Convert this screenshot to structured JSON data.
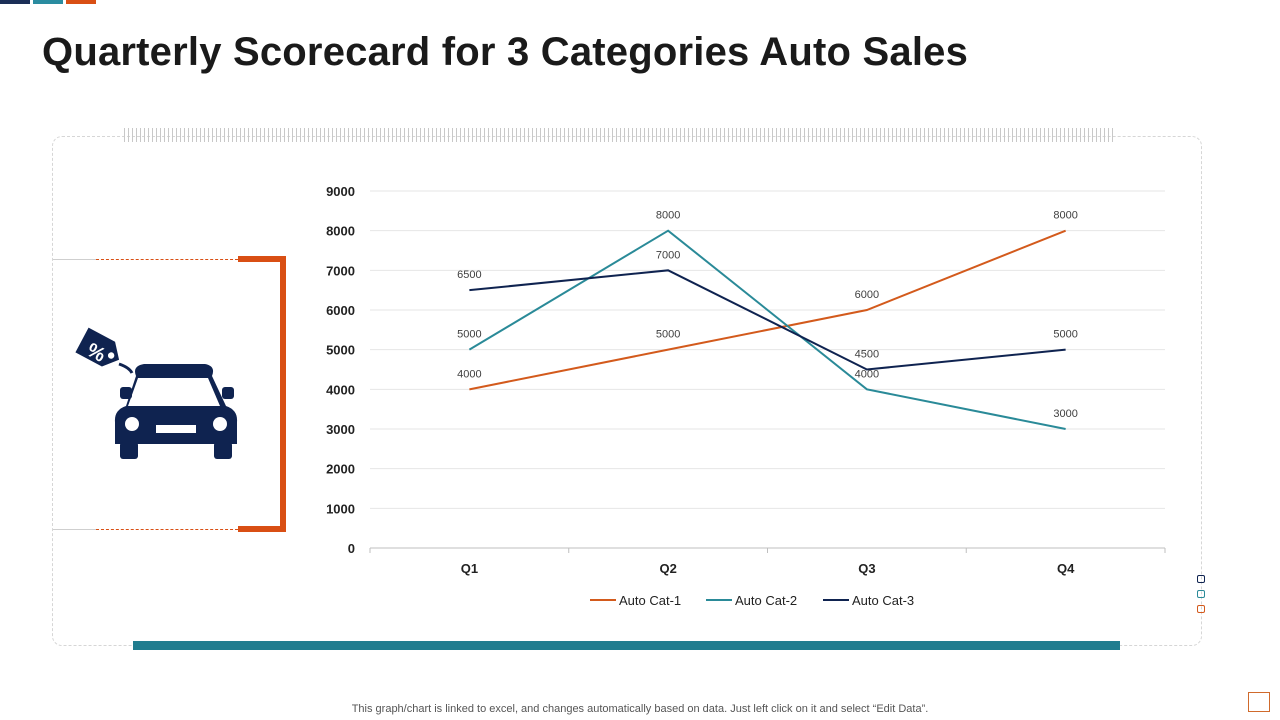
{
  "title": "Quarterly Scorecard for 3 Categories Auto Sales",
  "footer": "This graph/chart is linked to excel,  and changes automatically based on data. Just left click on it and select “Edit Data”.",
  "icon": {
    "name": "car-discount-tag-icon",
    "tag_text": "%"
  },
  "colors": {
    "accent_orange": "#d94f14",
    "accent_teal": "#217d8f",
    "navy": "#0f2350",
    "top_bar_1": "#1b2e57",
    "top_bar_2": "#2a8ca0",
    "top_bar_3": "#d94f14"
  },
  "chart_data": {
    "type": "line",
    "title": "",
    "xlabel": "",
    "ylabel": "",
    "categories": [
      "Q1",
      "Q2",
      "Q3",
      "Q4"
    ],
    "ylim": [
      0,
      9000
    ],
    "yticks": [
      0,
      1000,
      2000,
      3000,
      4000,
      5000,
      6000,
      7000,
      8000,
      9000
    ],
    "grid": true,
    "legend_position": "bottom",
    "series": [
      {
        "name": "Auto Cat-1",
        "color": "#d35a1c",
        "values": [
          4000,
          5000,
          6000,
          8000
        ]
      },
      {
        "name": "Auto Cat-2",
        "color": "#2a8a98",
        "values": [
          5000,
          8000,
          4000,
          3000
        ]
      },
      {
        "name": "Auto Cat-3",
        "color": "#0f2350",
        "values": [
          6500,
          7000,
          4500,
          5000
        ]
      }
    ]
  }
}
